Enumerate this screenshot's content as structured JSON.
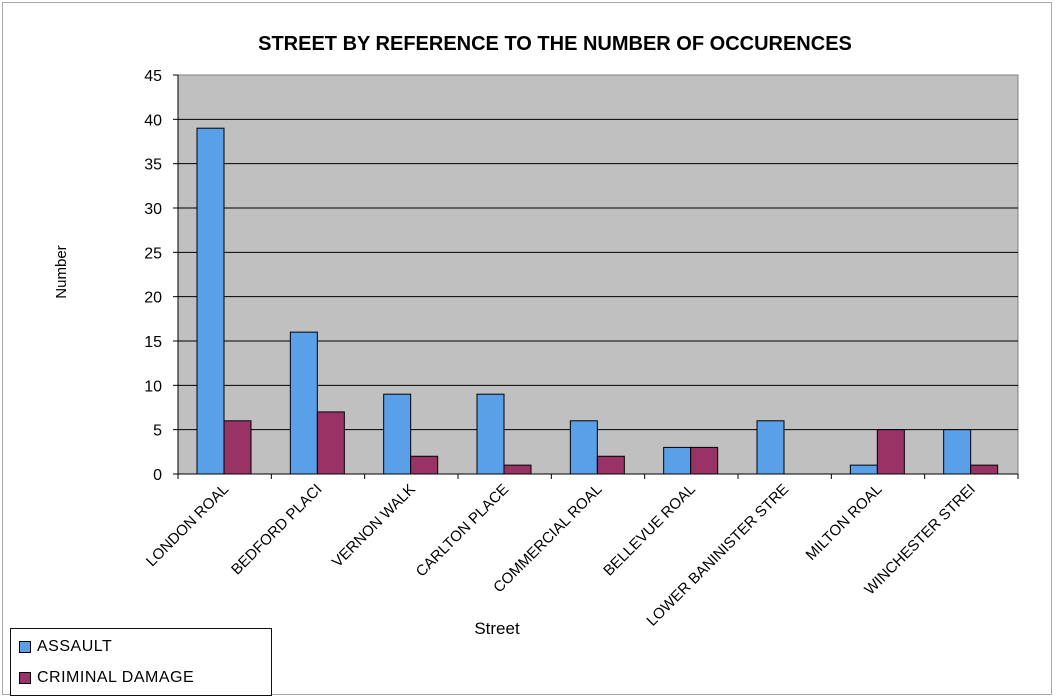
{
  "chart_data": {
    "type": "bar",
    "title": "STREET BY REFERENCE TO THE NUMBER OF OCCURENCES",
    "xlabel": "Street",
    "ylabel": "Number",
    "ylim": [
      0,
      45
    ],
    "yticks": [
      0,
      5,
      10,
      15,
      20,
      25,
      30,
      35,
      40,
      45
    ],
    "grid": true,
    "legend_position": "bottom-left",
    "categories": [
      "LONDON ROAD",
      "BEDFORD PLACE",
      "VERNON WALK",
      "CARLTON PLACE",
      "COMMERCIAL ROAD",
      "BELLEVUE ROAD",
      "LOWER BANINISTER STREET",
      "MILTON ROAD",
      "WINCHESTER STREET"
    ],
    "category_labels": [
      "LONDON ROAL",
      "BEDFORD PLACI",
      "VERNON WALK",
      "CARLTON PLACE",
      "COMMERCIAL ROAL",
      "BELLEVUE ROAL",
      "LOWER BANINISTER STRE",
      "MILTON ROAL",
      "WINCHESTER STREI"
    ],
    "series": [
      {
        "name": "ASSAULT",
        "color": "#5aa0e8",
        "values": [
          39,
          16,
          9,
          9,
          6,
          3,
          6,
          1,
          5
        ]
      },
      {
        "name": "CRIMINAL DAMAGE",
        "color": "#993366",
        "values": [
          6,
          7,
          2,
          1,
          2,
          3,
          0,
          5,
          1
        ]
      }
    ],
    "plot_background": "#c0c0c0"
  }
}
